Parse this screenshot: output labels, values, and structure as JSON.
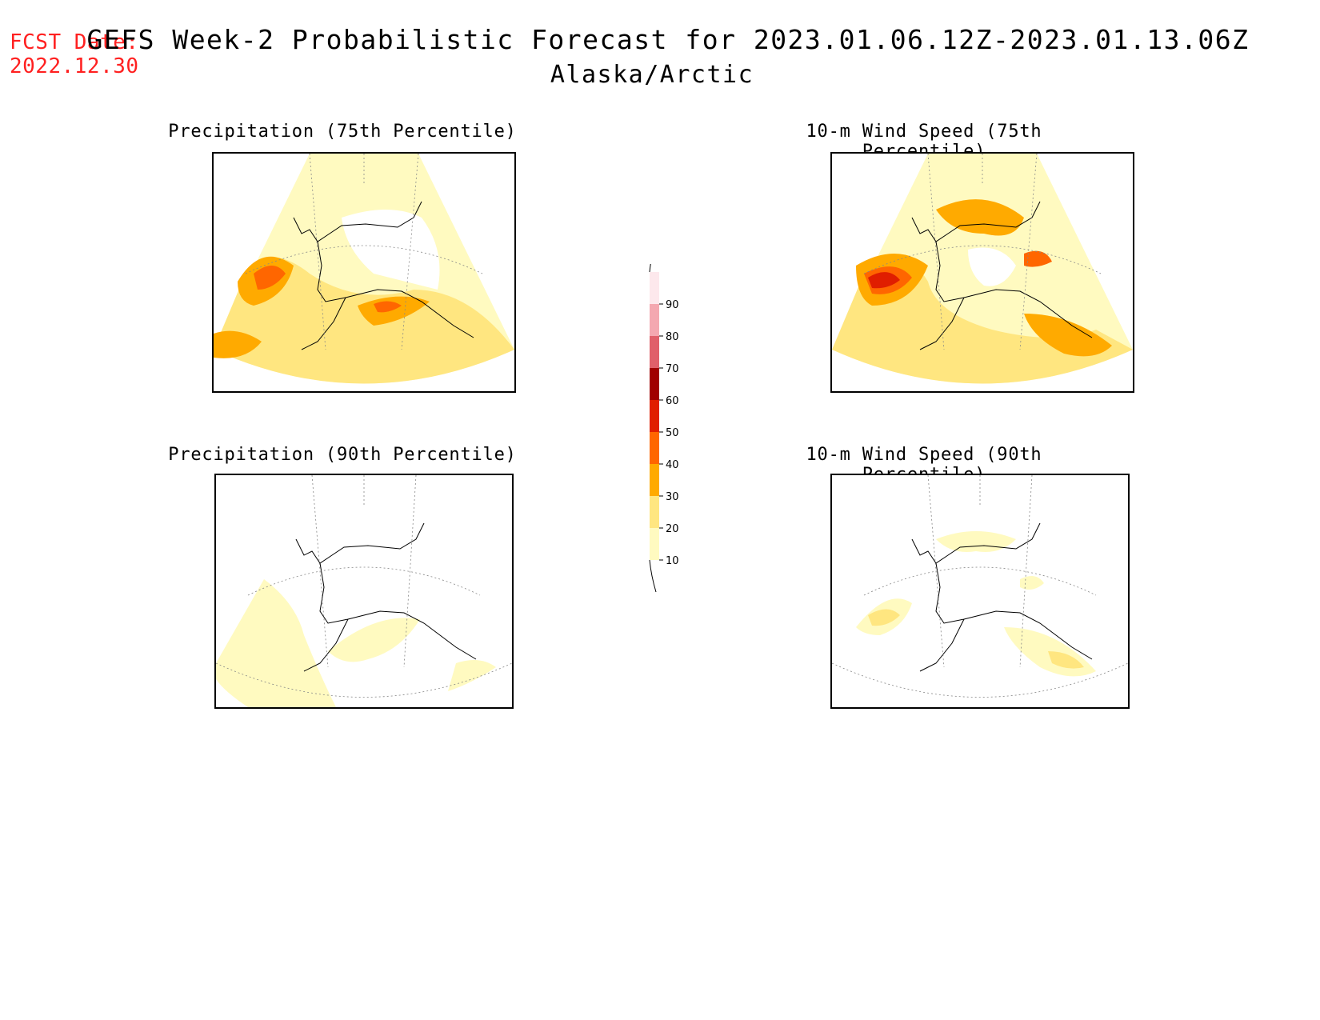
{
  "header": {
    "fcst_label": "FCST Date:",
    "fcst_date": "2022.12.30",
    "title": "GEFS Week-2 Probabilistic Forecast for 2023.01.06.12Z-2023.01.13.06Z",
    "region": "Alaska/Arctic"
  },
  "panels": [
    {
      "title": "Precipitation (75th Percentile)"
    },
    {
      "title": "10-m Wind Speed (75th Percentile)"
    },
    {
      "title": "Precipitation (90th Percentile)"
    },
    {
      "title": "10-m Wind Speed (90th Percentile)"
    }
  ],
  "colorbar": {
    "levels": [
      "10",
      "20",
      "30",
      "40",
      "50",
      "60",
      "70",
      "80",
      "90"
    ],
    "colors": [
      "#fffac0",
      "#ffe680",
      "#ffaa00",
      "#ff6600",
      "#e01e00",
      "#a00000",
      "#e0606a",
      "#f4a8b0",
      "#fde8ec"
    ]
  }
}
